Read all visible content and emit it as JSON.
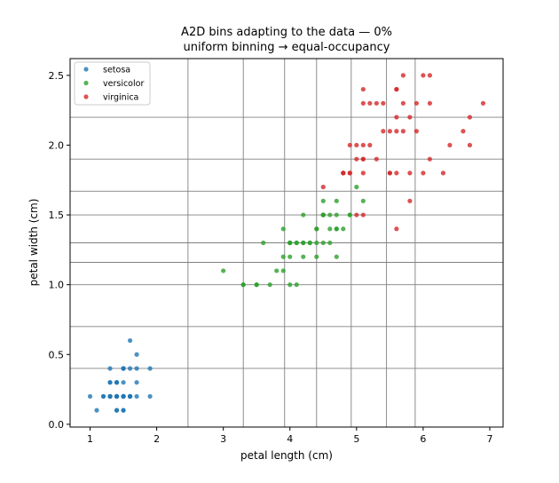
{
  "chart_data": {
    "type": "scatter",
    "title_line1": "A2D bins adapting to the data —   0%",
    "title_line2": "uniform binning → equal-occupancy",
    "xlabel": "petal length (cm)",
    "ylabel": "petal width (cm)",
    "xlim": [
      0.7,
      7.2
    ],
    "ylim": [
      -0.02,
      2.62
    ],
    "x_ticks": [
      1,
      2,
      3,
      4,
      5,
      6,
      7
    ],
    "x_tick_labels": [
      "1",
      "2",
      "3",
      "4",
      "5",
      "6",
      "7"
    ],
    "y_ticks": [
      0.0,
      0.5,
      1.0,
      1.5,
      2.0,
      2.5
    ],
    "y_tick_labels": [
      "0.0",
      "0.5",
      "1.0",
      "1.5",
      "2.0",
      "2.5"
    ],
    "bin_edges_x": [
      2.47,
      3.3,
      3.92,
      4.4,
      4.92,
      5.45,
      5.88
    ],
    "bin_edges_y": [
      0.4,
      0.7,
      1.0,
      1.16,
      1.3,
      1.5,
      1.67,
      1.9,
      2.2
    ],
    "legend_position": "top-left",
    "series": [
      {
        "name": "setosa",
        "color": "#1f77b4",
        "points": [
          [
            1.4,
            0.2
          ],
          [
            1.4,
            0.2
          ],
          [
            1.3,
            0.2
          ],
          [
            1.5,
            0.2
          ],
          [
            1.4,
            0.2
          ],
          [
            1.7,
            0.4
          ],
          [
            1.4,
            0.3
          ],
          [
            1.5,
            0.2
          ],
          [
            1.4,
            0.2
          ],
          [
            1.5,
            0.1
          ],
          [
            1.5,
            0.2
          ],
          [
            1.6,
            0.2
          ],
          [
            1.4,
            0.1
          ],
          [
            1.1,
            0.1
          ],
          [
            1.2,
            0.2
          ],
          [
            1.5,
            0.4
          ],
          [
            1.3,
            0.4
          ],
          [
            1.4,
            0.3
          ],
          [
            1.7,
            0.3
          ],
          [
            1.5,
            0.3
          ],
          [
            1.7,
            0.2
          ],
          [
            1.5,
            0.4
          ],
          [
            1.0,
            0.2
          ],
          [
            1.7,
            0.5
          ],
          [
            1.9,
            0.2
          ],
          [
            1.6,
            0.2
          ],
          [
            1.6,
            0.4
          ],
          [
            1.5,
            0.2
          ],
          [
            1.4,
            0.2
          ],
          [
            1.6,
            0.2
          ],
          [
            1.6,
            0.2
          ],
          [
            1.5,
            0.4
          ],
          [
            1.5,
            0.1
          ],
          [
            1.4,
            0.2
          ],
          [
            1.5,
            0.2
          ],
          [
            1.2,
            0.2
          ],
          [
            1.3,
            0.2
          ],
          [
            1.4,
            0.1
          ],
          [
            1.3,
            0.2
          ],
          [
            1.5,
            0.2
          ],
          [
            1.3,
            0.3
          ],
          [
            1.3,
            0.3
          ],
          [
            1.3,
            0.2
          ],
          [
            1.6,
            0.6
          ],
          [
            1.9,
            0.4
          ],
          [
            1.4,
            0.3
          ],
          [
            1.6,
            0.2
          ],
          [
            1.4,
            0.2
          ],
          [
            1.5,
            0.2
          ],
          [
            1.4,
            0.2
          ]
        ]
      },
      {
        "name": "versicolor",
        "color": "#2ca02c",
        "points": [
          [
            4.7,
            1.4
          ],
          [
            4.5,
            1.5
          ],
          [
            4.9,
            1.5
          ],
          [
            4.0,
            1.3
          ],
          [
            4.6,
            1.5
          ],
          [
            4.5,
            1.3
          ],
          [
            4.7,
            1.6
          ],
          [
            3.3,
            1.0
          ],
          [
            4.6,
            1.3
          ],
          [
            3.9,
            1.4
          ],
          [
            3.5,
            1.0
          ],
          [
            4.2,
            1.5
          ],
          [
            4.0,
            1.0
          ],
          [
            4.7,
            1.4
          ],
          [
            3.6,
            1.3
          ],
          [
            4.4,
            1.4
          ],
          [
            4.5,
            1.5
          ],
          [
            4.1,
            1.0
          ],
          [
            4.5,
            1.5
          ],
          [
            3.9,
            1.1
          ],
          [
            4.8,
            1.8
          ],
          [
            4.0,
            1.3
          ],
          [
            4.9,
            1.5
          ],
          [
            4.7,
            1.2
          ],
          [
            4.3,
            1.3
          ],
          [
            4.4,
            1.4
          ],
          [
            4.8,
            1.4
          ],
          [
            5.0,
            1.7
          ],
          [
            4.5,
            1.5
          ],
          [
            3.5,
            1.0
          ],
          [
            3.8,
            1.1
          ],
          [
            3.7,
            1.0
          ],
          [
            3.9,
            1.2
          ],
          [
            5.1,
            1.6
          ],
          [
            4.5,
            1.5
          ],
          [
            4.5,
            1.6
          ],
          [
            4.7,
            1.5
          ],
          [
            4.4,
            1.3
          ],
          [
            4.1,
            1.3
          ],
          [
            4.0,
            1.3
          ],
          [
            4.4,
            1.2
          ],
          [
            4.6,
            1.4
          ],
          [
            4.0,
            1.2
          ],
          [
            3.3,
            1.0
          ],
          [
            4.2,
            1.3
          ],
          [
            4.2,
            1.2
          ],
          [
            4.2,
            1.3
          ],
          [
            4.3,
            1.3
          ],
          [
            3.0,
            1.1
          ],
          [
            4.1,
            1.3
          ]
        ]
      },
      {
        "name": "virginica",
        "color": "#d62728",
        "points": [
          [
            6.0,
            2.5
          ],
          [
            5.1,
            1.9
          ],
          [
            5.9,
            2.1
          ],
          [
            5.6,
            1.8
          ],
          [
            5.8,
            2.2
          ],
          [
            6.6,
            2.1
          ],
          [
            4.5,
            1.7
          ],
          [
            6.3,
            1.8
          ],
          [
            5.8,
            1.8
          ],
          [
            6.1,
            2.5
          ],
          [
            5.1,
            2.0
          ],
          [
            5.3,
            1.9
          ],
          [
            5.5,
            2.1
          ],
          [
            5.0,
            2.0
          ],
          [
            5.1,
            2.4
          ],
          [
            5.3,
            2.3
          ],
          [
            5.5,
            1.8
          ],
          [
            6.7,
            2.2
          ],
          [
            6.9,
            2.3
          ],
          [
            5.0,
            1.5
          ],
          [
            5.7,
            2.3
          ],
          [
            4.9,
            2.0
          ],
          [
            6.7,
            2.0
          ],
          [
            4.9,
            1.8
          ],
          [
            5.7,
            2.1
          ],
          [
            6.0,
            1.8
          ],
          [
            4.8,
            1.8
          ],
          [
            4.9,
            1.8
          ],
          [
            5.6,
            2.1
          ],
          [
            5.8,
            1.6
          ],
          [
            6.1,
            1.9
          ],
          [
            6.4,
            2.0
          ],
          [
            5.6,
            2.2
          ],
          [
            5.1,
            1.5
          ],
          [
            5.6,
            1.4
          ],
          [
            6.1,
            2.3
          ],
          [
            5.6,
            2.4
          ],
          [
            5.5,
            1.8
          ],
          [
            4.8,
            1.8
          ],
          [
            5.4,
            2.1
          ],
          [
            5.6,
            2.4
          ],
          [
            5.1,
            2.3
          ],
          [
            5.1,
            1.9
          ],
          [
            5.9,
            2.3
          ],
          [
            5.7,
            2.5
          ],
          [
            5.2,
            2.3
          ],
          [
            5.0,
            1.9
          ],
          [
            5.2,
            2.0
          ],
          [
            5.4,
            2.3
          ],
          [
            5.1,
            1.8
          ]
        ]
      }
    ]
  }
}
